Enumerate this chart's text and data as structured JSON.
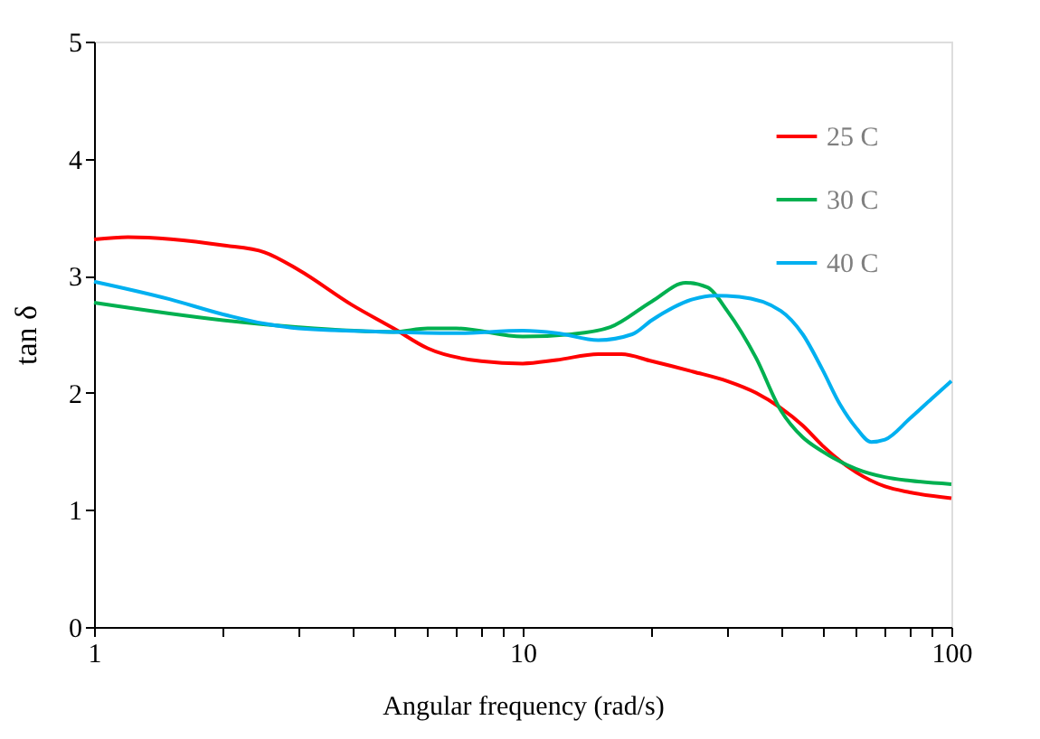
{
  "chart_data": {
    "type": "line",
    "xlabel": "Angular frequency  (rad/s)",
    "ylabel": "tan δ",
    "log": "x",
    "xlim": [
      1,
      100
    ],
    "ylim": [
      0,
      5
    ],
    "xticks": [
      1,
      {
        "value": 2,
        "label": null
      },
      {
        "value": 3,
        "label": null
      },
      {
        "value": 4,
        "label": null
      },
      {
        "value": 5,
        "label": null
      },
      {
        "value": 6,
        "label": null
      },
      {
        "value": 7,
        "label": null
      },
      {
        "value": 8,
        "label": null
      },
      {
        "value": 9,
        "label": null
      },
      10,
      {
        "value": 20,
        "label": null
      },
      {
        "value": 30,
        "label": null
      },
      {
        "value": 40,
        "label": null
      },
      {
        "value": 50,
        "label": null
      },
      {
        "value": 60,
        "label": null
      },
      {
        "value": 70,
        "label": null
      },
      {
        "value": 80,
        "label": null
      },
      {
        "value": 90,
        "label": null
      },
      100
    ],
    "yticks": [
      0,
      1,
      2,
      3,
      4,
      5
    ],
    "grid": false,
    "legend": "top right",
    "marker": "none",
    "line_style": "solid",
    "series": [
      {
        "name": "25 C",
        "color": "#ff0000",
        "x": [
          1,
          1.2,
          2,
          2.5,
          3,
          4,
          5,
          6,
          8,
          10,
          12,
          15,
          17,
          20,
          25,
          30,
          35,
          40,
          45,
          50,
          60,
          70,
          80,
          100
        ],
        "values": [
          3.31,
          3.33,
          3.26,
          3.2,
          3.05,
          2.75,
          2.55,
          2.38,
          2.27,
          2.25,
          2.28,
          2.33,
          2.33,
          2.27,
          2.18,
          2.1,
          2.0,
          1.87,
          1.72,
          1.55,
          1.32,
          1.2,
          1.15,
          1.1
        ]
      },
      {
        "name": "30 C",
        "color": "#00b050",
        "x": [
          1,
          2,
          3,
          5,
          6,
          7,
          10,
          13,
          16,
          20,
          24,
          27,
          30,
          35,
          40,
          45,
          50,
          60,
          70,
          80,
          100
        ],
        "values": [
          2.77,
          2.62,
          2.56,
          2.52,
          2.55,
          2.55,
          2.48,
          2.5,
          2.56,
          2.78,
          2.94,
          2.9,
          2.7,
          2.3,
          1.85,
          1.62,
          1.5,
          1.35,
          1.28,
          1.25,
          1.22
        ]
      },
      {
        "name": "40 C",
        "color": "#00b0f0",
        "x": [
          1,
          1.5,
          2,
          2.5,
          3,
          5,
          7,
          10,
          12,
          15,
          18,
          20,
          25,
          28,
          32,
          40,
          45,
          50,
          55,
          60,
          65,
          70,
          80,
          90,
          100
        ],
        "values": [
          2.95,
          2.8,
          2.67,
          2.59,
          2.55,
          2.52,
          2.51,
          2.53,
          2.51,
          2.45,
          2.5,
          2.62,
          2.8,
          2.83,
          2.82,
          2.7,
          2.5,
          2.2,
          1.9,
          1.7,
          1.58,
          1.6,
          1.78,
          1.95,
          2.1
        ]
      }
    ]
  }
}
